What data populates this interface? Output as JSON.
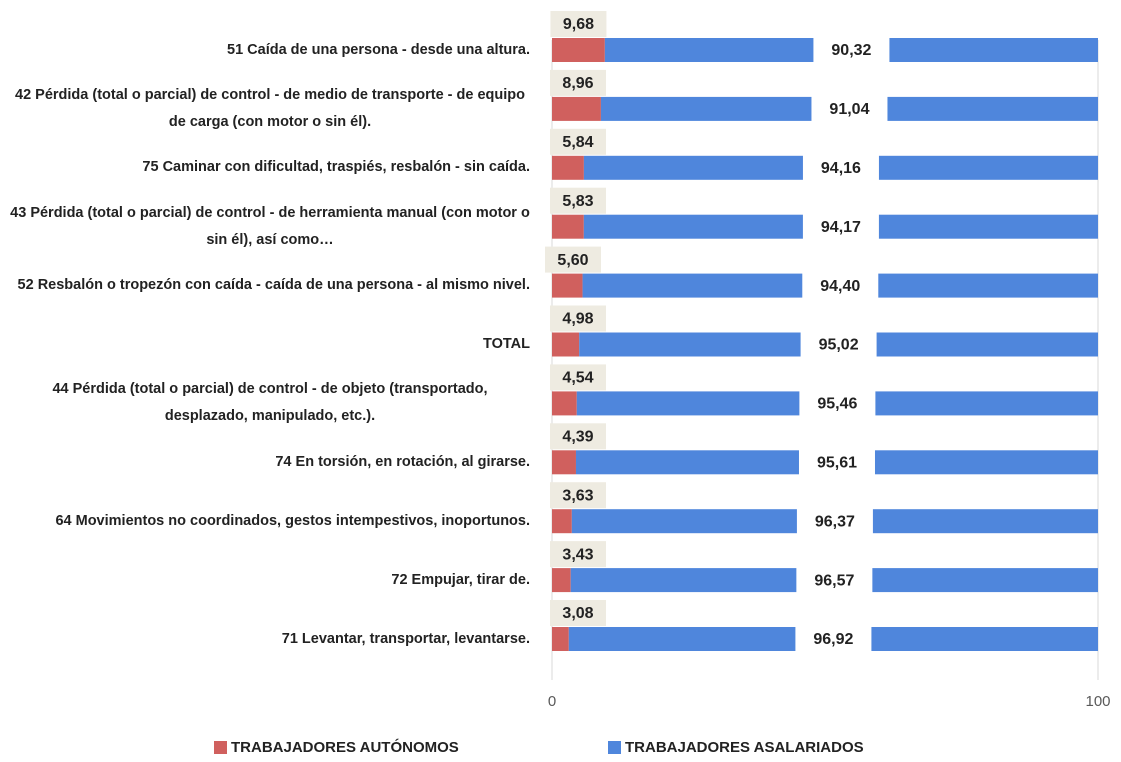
{
  "chart_data": {
    "type": "stacked_barh",
    "categories": [
      "51 Caída de una persona - desde una altura.",
      "42 Pérdida (total o parcial) de control - de medio de transporte - de equipo de carga (con motor o sin él).",
      "75 Caminar con dificultad, traspiés, resbalón - sin caída.",
      "43 Pérdida (total o parcial) de control - de herramienta manual (con motor o sin él), así como…",
      "52 Resbalón o tropezón con caída - caída de una persona - al mismo nivel.",
      "TOTAL",
      "44 Pérdida (total o parcial) de control - de objeto (transportado, desplazado, manipulado, etc.).",
      "74 En torsión, en rotación, al girarse.",
      "64 Movimientos no coordinados, gestos intempestivos, inoportunos.",
      "72 Empujar, tirar de.",
      "71 Levantar, transportar, levantarse."
    ],
    "series": [
      {
        "name": "TRABAJADORES AUTÓNOMOS",
        "color": "#d0605e",
        "values": [
          9.68,
          8.96,
          5.84,
          5.83,
          5.6,
          4.98,
          4.54,
          4.39,
          3.63,
          3.43,
          3.08
        ],
        "value_labels": [
          "9,68",
          "8,96",
          "5,84",
          "5,83",
          "5,60",
          "4,98",
          "4,54",
          "4,39",
          "3,63",
          "3,43",
          "3,08"
        ]
      },
      {
        "name": "TRABAJADORES ASALARIADOS",
        "color": "#4f86dc",
        "values": [
          90.32,
          91.04,
          94.16,
          94.17,
          94.4,
          95.02,
          95.46,
          95.61,
          96.37,
          96.57,
          96.92
        ],
        "value_labels": [
          "90,32",
          "91,04",
          "94,16",
          "94,17",
          "94,40",
          "95,02",
          "95,46",
          "95,61",
          "96,37",
          "96,57",
          "96,92"
        ]
      }
    ],
    "xlim": [
      0,
      100
    ],
    "xticks": [
      0,
      100
    ],
    "grid": true,
    "legend": "bottom"
  }
}
